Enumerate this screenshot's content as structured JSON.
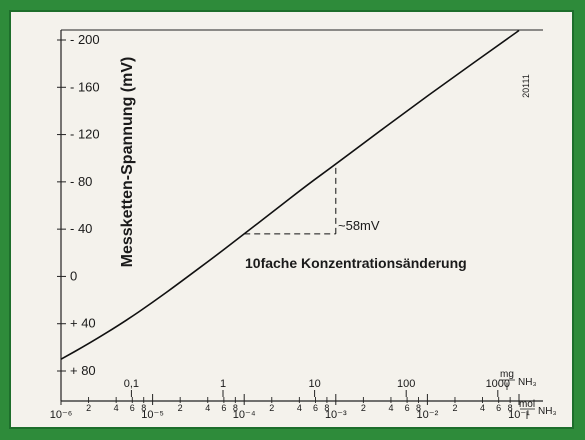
{
  "chart_data": {
    "type": "line",
    "title": "",
    "ylabel": "Messketten-Spannung (mV)",
    "y_axis": {
      "ticks": [
        -200,
        -160,
        -120,
        -80,
        -40,
        0,
        40,
        80
      ],
      "tick_labels": [
        "- 200",
        "- 160",
        "- 120",
        "- 80",
        "- 40",
        "0",
        "+ 40",
        "+ 80"
      ],
      "range": [
        -210,
        85
      ],
      "direction": "negative-up"
    },
    "x_axis_top": {
      "unit_num": "mg",
      "unit_den": "l",
      "species": "NH₃",
      "ticks": [
        {
          "label": "0,1",
          "value": 0.1
        },
        {
          "label": "1",
          "value": 1
        },
        {
          "label": "10",
          "value": 10
        },
        {
          "label": "100",
          "value": 100
        },
        {
          "label": "1000",
          "value": 1000
        }
      ]
    },
    "x_axis_bottom": {
      "unit_num": "mol",
      "unit_den": "l",
      "species": "NH₃",
      "scale": "log",
      "range": [
        1e-06,
        0.1
      ],
      "major_ticks": [
        {
          "label": "10⁻⁶",
          "value": 1e-06
        },
        {
          "label": "10⁻⁵",
          "value": 1e-05
        },
        {
          "label": "10⁻⁴",
          "value": 0.0001
        },
        {
          "label": "10⁻³",
          "value": 0.001
        },
        {
          "label": "10⁻²",
          "value": 0.01
        },
        {
          "label": "10⁻¹",
          "value": 0.1
        }
      ],
      "minor_labels": [
        "2",
        "4",
        "6",
        "8"
      ]
    },
    "series": [
      {
        "points": [
          [
            1e-06,
            70
          ],
          [
            2e-06,
            57
          ],
          [
            5e-06,
            38
          ],
          [
            1e-05,
            22
          ],
          [
            2e-05,
            5
          ],
          [
            5e-05,
            -18
          ],
          [
            0.0001,
            -36
          ],
          [
            0.0002,
            -54
          ],
          [
            0.0005,
            -78
          ],
          [
            0.001,
            -95
          ],
          [
            0.01,
            -153
          ],
          [
            0.1,
            -208
          ]
        ]
      }
    ],
    "annotations": {
      "slope_label": "~58mV",
      "decade_label": "10fache Konzentrationsänderung",
      "corner_code": "20111"
    }
  }
}
